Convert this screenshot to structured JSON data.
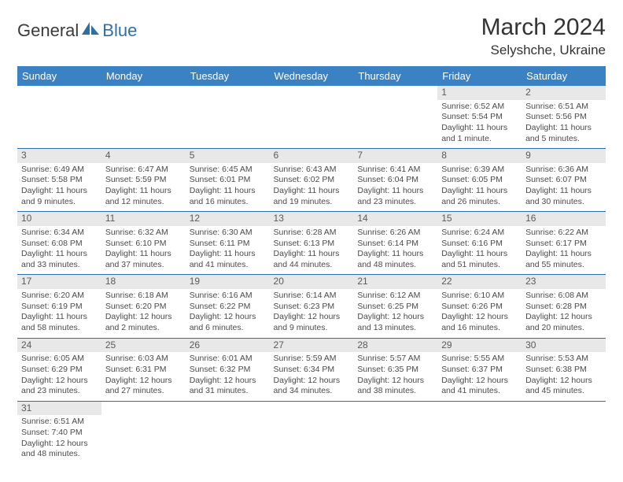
{
  "logo": {
    "text1": "General",
    "text2": "Blue"
  },
  "title": "March 2024",
  "location": "Selyshche, Ukraine",
  "weekdays": [
    "Sunday",
    "Monday",
    "Tuesday",
    "Wednesday",
    "Thursday",
    "Friday",
    "Saturday"
  ],
  "colors": {
    "header_bg": "#3b82c4",
    "header_fg": "#ffffff",
    "daynum_bg": "#e8e8e8",
    "border": "#2f6fa8",
    "logo_blue": "#2f6fa8"
  },
  "typography": {
    "title_fontsize": 30,
    "location_fontsize": 17,
    "weekday_fontsize": 13,
    "cell_fontsize": 10.5
  },
  "grid": {
    "first_weekday_index": 5,
    "rows": 6,
    "cols": 7
  },
  "days": [
    {
      "n": 1,
      "sunrise": "6:52 AM",
      "sunset": "5:54 PM",
      "daylight": "11 hours and 1 minute."
    },
    {
      "n": 2,
      "sunrise": "6:51 AM",
      "sunset": "5:56 PM",
      "daylight": "11 hours and 5 minutes."
    },
    {
      "n": 3,
      "sunrise": "6:49 AM",
      "sunset": "5:58 PM",
      "daylight": "11 hours and 9 minutes."
    },
    {
      "n": 4,
      "sunrise": "6:47 AM",
      "sunset": "5:59 PM",
      "daylight": "11 hours and 12 minutes."
    },
    {
      "n": 5,
      "sunrise": "6:45 AM",
      "sunset": "6:01 PM",
      "daylight": "11 hours and 16 minutes."
    },
    {
      "n": 6,
      "sunrise": "6:43 AM",
      "sunset": "6:02 PM",
      "daylight": "11 hours and 19 minutes."
    },
    {
      "n": 7,
      "sunrise": "6:41 AM",
      "sunset": "6:04 PM",
      "daylight": "11 hours and 23 minutes."
    },
    {
      "n": 8,
      "sunrise": "6:39 AM",
      "sunset": "6:05 PM",
      "daylight": "11 hours and 26 minutes."
    },
    {
      "n": 9,
      "sunrise": "6:36 AM",
      "sunset": "6:07 PM",
      "daylight": "11 hours and 30 minutes."
    },
    {
      "n": 10,
      "sunrise": "6:34 AM",
      "sunset": "6:08 PM",
      "daylight": "11 hours and 33 minutes."
    },
    {
      "n": 11,
      "sunrise": "6:32 AM",
      "sunset": "6:10 PM",
      "daylight": "11 hours and 37 minutes."
    },
    {
      "n": 12,
      "sunrise": "6:30 AM",
      "sunset": "6:11 PM",
      "daylight": "11 hours and 41 minutes."
    },
    {
      "n": 13,
      "sunrise": "6:28 AM",
      "sunset": "6:13 PM",
      "daylight": "11 hours and 44 minutes."
    },
    {
      "n": 14,
      "sunrise": "6:26 AM",
      "sunset": "6:14 PM",
      "daylight": "11 hours and 48 minutes."
    },
    {
      "n": 15,
      "sunrise": "6:24 AM",
      "sunset": "6:16 PM",
      "daylight": "11 hours and 51 minutes."
    },
    {
      "n": 16,
      "sunrise": "6:22 AM",
      "sunset": "6:17 PM",
      "daylight": "11 hours and 55 minutes."
    },
    {
      "n": 17,
      "sunrise": "6:20 AM",
      "sunset": "6:19 PM",
      "daylight": "11 hours and 58 minutes."
    },
    {
      "n": 18,
      "sunrise": "6:18 AM",
      "sunset": "6:20 PM",
      "daylight": "12 hours and 2 minutes."
    },
    {
      "n": 19,
      "sunrise": "6:16 AM",
      "sunset": "6:22 PM",
      "daylight": "12 hours and 6 minutes."
    },
    {
      "n": 20,
      "sunrise": "6:14 AM",
      "sunset": "6:23 PM",
      "daylight": "12 hours and 9 minutes."
    },
    {
      "n": 21,
      "sunrise": "6:12 AM",
      "sunset": "6:25 PM",
      "daylight": "12 hours and 13 minutes."
    },
    {
      "n": 22,
      "sunrise": "6:10 AM",
      "sunset": "6:26 PM",
      "daylight": "12 hours and 16 minutes."
    },
    {
      "n": 23,
      "sunrise": "6:08 AM",
      "sunset": "6:28 PM",
      "daylight": "12 hours and 20 minutes."
    },
    {
      "n": 24,
      "sunrise": "6:05 AM",
      "sunset": "6:29 PM",
      "daylight": "12 hours and 23 minutes."
    },
    {
      "n": 25,
      "sunrise": "6:03 AM",
      "sunset": "6:31 PM",
      "daylight": "12 hours and 27 minutes."
    },
    {
      "n": 26,
      "sunrise": "6:01 AM",
      "sunset": "6:32 PM",
      "daylight": "12 hours and 31 minutes."
    },
    {
      "n": 27,
      "sunrise": "5:59 AM",
      "sunset": "6:34 PM",
      "daylight": "12 hours and 34 minutes."
    },
    {
      "n": 28,
      "sunrise": "5:57 AM",
      "sunset": "6:35 PM",
      "daylight": "12 hours and 38 minutes."
    },
    {
      "n": 29,
      "sunrise": "5:55 AM",
      "sunset": "6:37 PM",
      "daylight": "12 hours and 41 minutes."
    },
    {
      "n": 30,
      "sunrise": "5:53 AM",
      "sunset": "6:38 PM",
      "daylight": "12 hours and 45 minutes."
    },
    {
      "n": 31,
      "sunrise": "6:51 AM",
      "sunset": "7:40 PM",
      "daylight": "12 hours and 48 minutes."
    }
  ],
  "labels": {
    "sunrise": "Sunrise:",
    "sunset": "Sunset:",
    "daylight": "Daylight:"
  }
}
